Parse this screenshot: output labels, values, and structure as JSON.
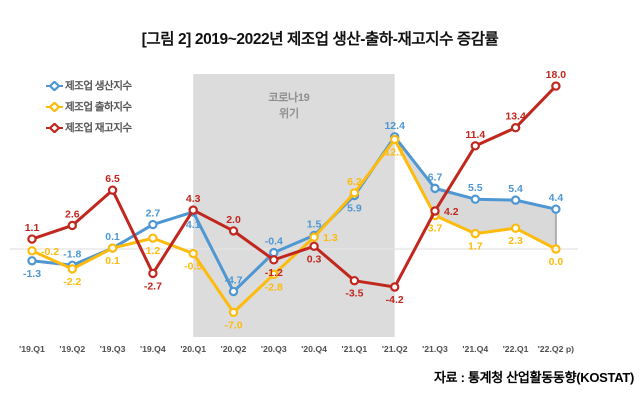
{
  "title": "[그림 2] 2019~2022년 제조업 생산-출하-재고지수 증감률",
  "source": "자료 : 통계청 산업활동동향(KOSTAT)",
  "chart_data": {
    "type": "line",
    "title": "[그림 2] 2019~2022년 제조업 생산-출하-재고지수 증감률",
    "xlabel": "",
    "ylabel": "",
    "ylim": [
      -8,
      19
    ],
    "grid": "zero-line-only",
    "legend_position": "top-left",
    "categories": [
      "'19.Q1",
      "'19.Q2",
      "'19.Q3",
      "'19.Q4",
      "'20.Q1",
      "'20.Q2",
      "'20.Q3",
      "'20.Q4",
      "'21.Q1",
      "'21.Q2",
      "'21.Q3",
      "'21.Q4",
      "'22.Q1",
      "'22.Q2 p)"
    ],
    "series": [
      {
        "id": "production",
        "name": "제조업 생산지수",
        "color": "#4e97d3",
        "values": [
          -1.3,
          -1.8,
          0.1,
          2.7,
          4.1,
          -4.7,
          -0.4,
          1.5,
          5.9,
          12.4,
          6.7,
          5.5,
          5.4,
          4.4
        ],
        "label_pos": [
          "below",
          "above",
          "above",
          "above",
          "below",
          "above",
          "above",
          "above",
          "below",
          "above",
          "above",
          "above",
          "above",
          "above"
        ]
      },
      {
        "id": "shipment",
        "name": "제조업 출하지수",
        "color": "#fdbb0e",
        "values": [
          -0.2,
          -2.2,
          0.1,
          1.2,
          -0.5,
          -7.0,
          -2.8,
          1.3,
          6.2,
          12.1,
          3.7,
          1.7,
          2.3,
          0.0
        ],
        "label_pos": [
          "right",
          "below",
          "below",
          "below",
          "below",
          "below",
          "below",
          "right",
          "above",
          "below",
          "below",
          "below",
          "below",
          "below"
        ]
      },
      {
        "id": "inventory",
        "name": "제조업 재고지수",
        "color": "#c1271e",
        "values": [
          1.1,
          2.6,
          6.5,
          -2.7,
          4.3,
          2.0,
          -1.2,
          0.3,
          -3.5,
          -4.2,
          4.2,
          11.4,
          13.4,
          18.0
        ],
        "label_pos": [
          "above",
          "above",
          "above",
          "below",
          "above",
          "above",
          "below",
          "below",
          "below",
          "below",
          "right",
          "above",
          "above",
          "above"
        ]
      }
    ],
    "annotations": {
      "covid_band": {
        "label_line1": "코로나19",
        "label_line2": "위기",
        "start_category": "'20.Q1",
        "end_category": "'21.Q2",
        "start_index": 4,
        "end_index": 9,
        "fill": "#dcdcdc",
        "label_color": "#8f8f8f"
      },
      "gap_fill": {
        "between": [
          "production",
          "shipment"
        ],
        "start_index": 9,
        "end_index": 13,
        "fill": "#d9d9d9",
        "edge_color": "#afafaf"
      }
    }
  }
}
